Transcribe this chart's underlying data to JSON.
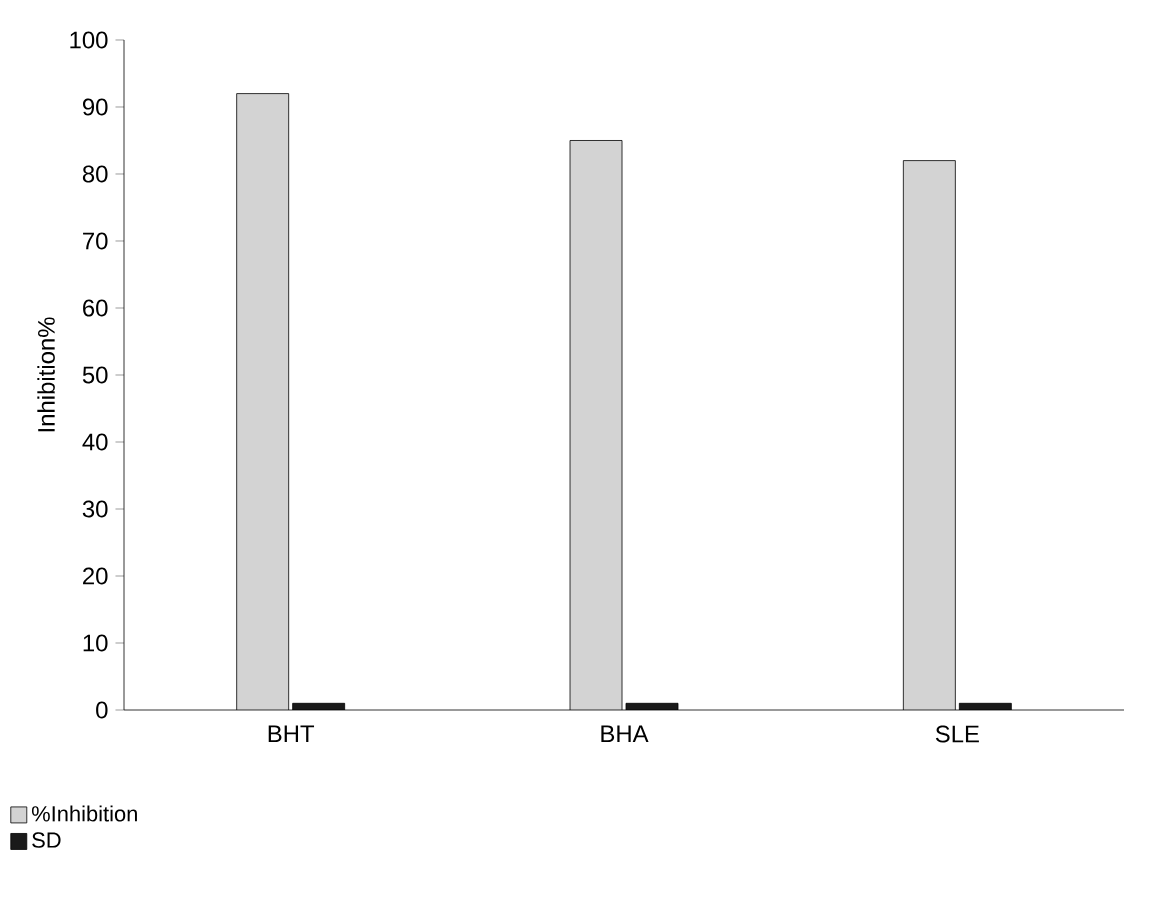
{
  "chart_data": {
    "type": "bar",
    "ylabel": "Inhibition%",
    "categories": [
      "BHT",
      "BHA",
      "SLE"
    ],
    "series": [
      {
        "name": "%Inhibition",
        "color": "#d3d3d3",
        "values": [
          92,
          85,
          82
        ]
      },
      {
        "name": "SD",
        "color": "#1a1a1a",
        "values": [
          1,
          1,
          1
        ]
      }
    ],
    "ylim": [
      0,
      100
    ],
    "yticks": [
      0,
      10,
      20,
      30,
      40,
      50,
      60,
      70,
      80,
      90,
      100
    ],
    "grid": false,
    "legend": "bottom left"
  }
}
